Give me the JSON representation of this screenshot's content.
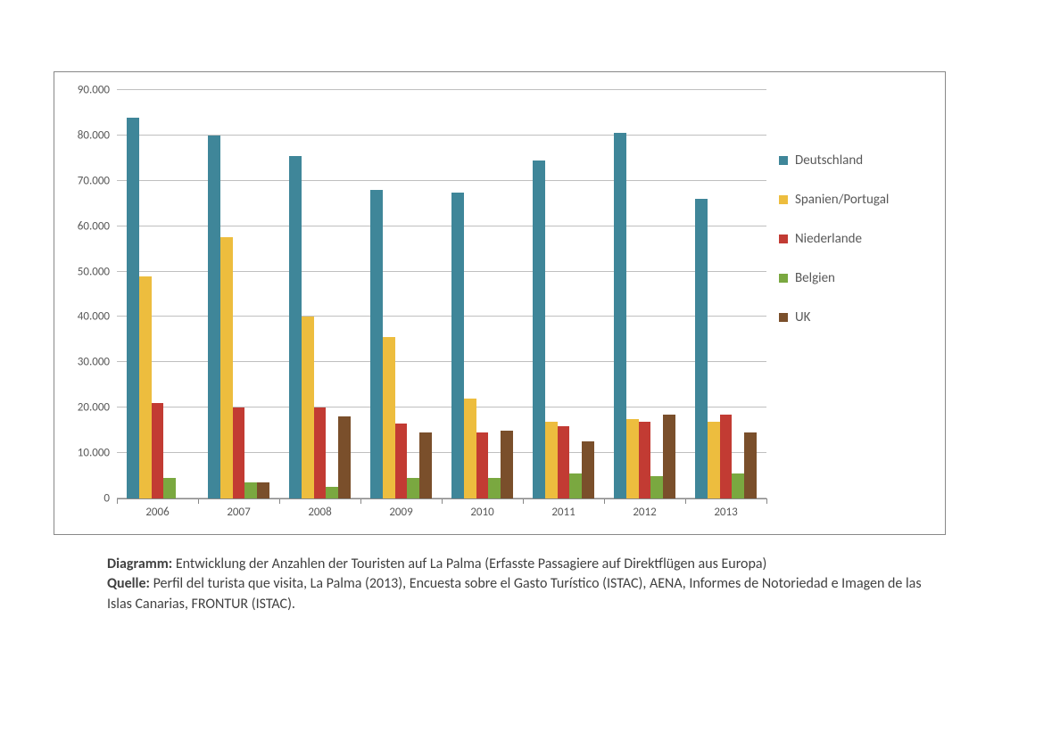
{
  "chart": {
    "type": "bar",
    "background_color": "#ffffff",
    "grid_color": "#bfbfbf",
    "axis_color": "#888888",
    "tick_label_fontsize": 13,
    "tick_label_color": "#595959",
    "ylim": [
      0,
      90000
    ],
    "ytick_step": 10000,
    "ytick_labels": [
      "0",
      "10.000",
      "20.000",
      "30.000",
      "40.000",
      "50.000",
      "60.000",
      "70.000",
      "80.000",
      "90.000"
    ],
    "categories": [
      "2006",
      "2007",
      "2008",
      "2009",
      "2010",
      "2011",
      "2012",
      "2013"
    ],
    "series": [
      {
        "name": "Deutschland",
        "color": "#3f8699",
        "values": [
          84000,
          80000,
          75500,
          68000,
          67500,
          74500,
          80500,
          66000
        ]
      },
      {
        "name": "Spanien/Portugal",
        "color": "#edbd3e",
        "values": [
          49000,
          57500,
          40000,
          35500,
          22000,
          17000,
          17500,
          17000
        ]
      },
      {
        "name": "Niederlande",
        "color": "#c23b33",
        "values": [
          21000,
          20000,
          20000,
          16500,
          14500,
          16000,
          17000,
          18500
        ]
      },
      {
        "name": "Belgien",
        "color": "#7aa840",
        "values": [
          4500,
          3500,
          2500,
          4500,
          4500,
          5500,
          5000,
          5500
        ]
      },
      {
        "name": "UK",
        "color": "#7a4f2b",
        "values": [
          0,
          3500,
          18000,
          14500,
          15000,
          12500,
          18500,
          14500
        ]
      }
    ],
    "legend_fontsize": 15
  },
  "caption": {
    "diagram_label": "Diagramm:",
    "diagram_text": "Entwicklung der Anzahlen der Touristen auf La Palma (Erfasste Passagiere auf Direktflügen aus Europa)",
    "source_label": "Quelle:",
    "source_text": "Perfil del turista que visita, La Palma (2013), Encuesta sobre el Gasto Turístico (ISTAC), AENA, Informes de Notoriedad e Imagen de las Islas Canarias, FRONTUR (ISTAC).",
    "fontsize": 16,
    "color": "#404040"
  }
}
